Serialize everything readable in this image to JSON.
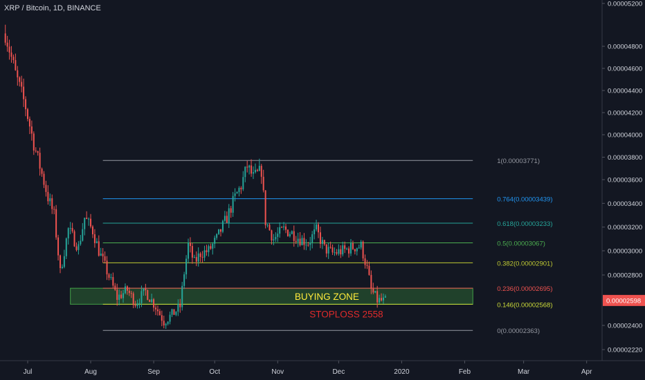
{
  "title": "XRP / Bitcoin, 1D, BINANCE",
  "colors": {
    "background": "#131722",
    "up": "#26a69a",
    "down": "#ef5350",
    "axis_text": "#d1d4dc",
    "price_tag": "#ef5350"
  },
  "chart_data": {
    "type": "candlestick",
    "title": "XRP / Bitcoin, 1D, BINANCE",
    "xlabel": "",
    "ylabel": "",
    "ylim": [
      2.12e-05,
      5.24e-05
    ],
    "x_ticks": [
      "Jul",
      "Aug",
      "Sep",
      "Oct",
      "Nov",
      "Dec",
      "2020",
      "Feb",
      "Mar",
      "Apr"
    ],
    "y_ticks": [
      "0.00005200",
      "0.00004800",
      "0.00004600",
      "0.00004400",
      "0.00004200",
      "0.00004000",
      "0.00003800",
      "0.00003600",
      "0.00003400",
      "0.00003200",
      "0.00003000",
      "0.00002800",
      "0.00002400",
      "0.00002220"
    ],
    "last_price": "0.00002598",
    "price_path": [
      [
        "2019-06-20",
        4.92e-05
      ],
      [
        "2019-06-25",
        4.55e-05
      ],
      [
        "2019-06-30",
        4.25e-05
      ],
      [
        "2019-07-04",
        3.92e-05
      ],
      [
        "2019-07-08",
        3.65e-05
      ],
      [
        "2019-07-11",
        3.45e-05
      ],
      [
        "2019-07-14",
        3.3e-05
      ],
      [
        "2019-07-17",
        2.82e-05
      ],
      [
        "2019-07-21",
        3.18e-05
      ],
      [
        "2019-07-26",
        3.03e-05
      ],
      [
        "2019-07-29",
        3.28e-05
      ],
      [
        "2019-08-02",
        3.17e-05
      ],
      [
        "2019-08-05",
        3e-05
      ],
      [
        "2019-08-09",
        2.83e-05
      ],
      [
        "2019-08-14",
        2.62e-05
      ],
      [
        "2019-08-19",
        2.68e-05
      ],
      [
        "2019-08-23",
        2.58e-05
      ],
      [
        "2019-08-28",
        2.67e-05
      ],
      [
        "2019-09-02",
        2.55e-05
      ],
      [
        "2019-09-06",
        2.43e-05
      ],
      [
        "2019-09-11",
        2.5e-05
      ],
      [
        "2019-09-14",
        2.55e-05
      ],
      [
        "2019-09-16",
        2.82e-05
      ],
      [
        "2019-09-18",
        3.05e-05
      ],
      [
        "2019-09-21",
        2.9e-05
      ],
      [
        "2019-09-24",
        2.98e-05
      ],
      [
        "2019-09-28",
        3e-05
      ],
      [
        "2019-10-02",
        3.1e-05
      ],
      [
        "2019-10-07",
        3.28e-05
      ],
      [
        "2019-10-11",
        3.45e-05
      ],
      [
        "2019-10-14",
        3.55e-05
      ],
      [
        "2019-10-17",
        3.72e-05
      ],
      [
        "2019-10-20",
        3.62e-05
      ],
      [
        "2019-10-24",
        3.68e-05
      ],
      [
        "2019-10-26",
        3.25e-05
      ],
      [
        "2019-10-30",
        3.1e-05
      ],
      [
        "2019-11-04",
        3.18e-05
      ],
      [
        "2019-11-08",
        3.15e-05
      ],
      [
        "2019-11-12",
        3.1e-05
      ],
      [
        "2019-11-16",
        3.07e-05
      ],
      [
        "2019-11-20",
        3.17e-05
      ],
      [
        "2019-11-24",
        3.02e-05
      ],
      [
        "2019-11-28",
        2.98e-05
      ],
      [
        "2019-12-03",
        3e-05
      ],
      [
        "2019-12-08",
        3.03e-05
      ],
      [
        "2019-12-12",
        3.04e-05
      ],
      [
        "2019-12-15",
        2.85e-05
      ],
      [
        "2019-12-17",
        2.68e-05
      ],
      [
        "2019-12-20",
        2.6e-05
      ],
      [
        "2019-12-24",
        2.59e-05
      ]
    ],
    "fib_levels": [
      {
        "label": "1(0.00003771)",
        "value": 3.771e-05,
        "color": "#9598a1"
      },
      {
        "label": "0.764(0.00003439)",
        "value": 3.439e-05,
        "color": "#2196f3"
      },
      {
        "label": "0.618(0.00003233)",
        "value": 3.233e-05,
        "color": "#26a69a"
      },
      {
        "label": "0.5(0.00003067)",
        "value": 3.067e-05,
        "color": "#4caf50"
      },
      {
        "label": "0.382(0.00002901)",
        "value": 2.901e-05,
        "color": "#c0ca33"
      },
      {
        "label": "0.236(0.00002695)",
        "value": 2.695e-05,
        "color": "#ef5350"
      },
      {
        "label": "0.146(0.00002568)",
        "value": 2.568e-05,
        "color": "#cddc39"
      },
      {
        "label": "0(0.00002363)",
        "value": 2.363e-05,
        "color": "#9598a1"
      }
    ],
    "annotations": [
      {
        "text": "BUYING ZONE",
        "color": "#ffeb3b"
      },
      {
        "text": "STOPLOSS 2558",
        "color": "#e02b2b"
      }
    ],
    "buying_zone": {
      "from": "2019-07-22",
      "to": "2020-02-05",
      "low": 2.568e-05,
      "high": 2.695e-05
    },
    "fib_range": {
      "from": "2019-08-07",
      "to": "2020-02-05"
    }
  }
}
